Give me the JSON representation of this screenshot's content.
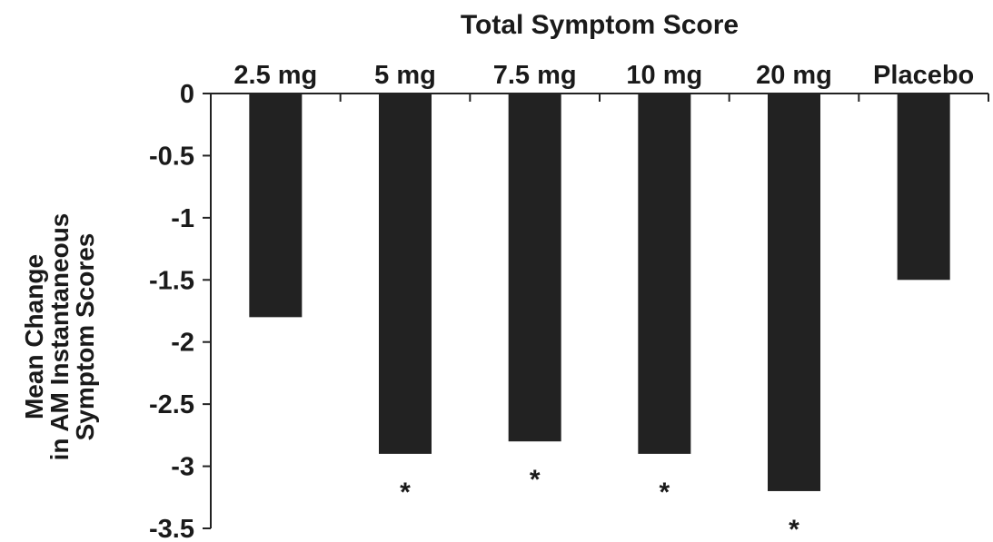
{
  "chart_data": {
    "type": "bar",
    "title": "Total Symptom Score",
    "ylabel_lines": [
      "Mean Change",
      "in AM Instantaneous",
      "Symptom Scores"
    ],
    "xlabel": "",
    "categories": [
      "2.5 mg",
      "5 mg",
      "7.5 mg",
      "10 mg",
      "20 mg",
      "Placebo"
    ],
    "values": [
      -1.8,
      -2.9,
      -2.8,
      -2.9,
      -3.2,
      -1.5
    ],
    "significance": [
      "",
      "*",
      "*",
      "*",
      "*",
      ""
    ],
    "ylim": [
      -3.5,
      0
    ],
    "yticks": [
      0,
      -0.5,
      -1,
      -1.5,
      -2,
      -2.5,
      -3,
      -3.5
    ],
    "ytick_labels": [
      "0",
      "-0.5",
      "-1",
      "-1.5",
      "-2",
      "-2.5",
      "-3",
      "-3.5"
    ],
    "category_position": "top",
    "grid": false,
    "legend": "none",
    "bar_color": "#222222"
  }
}
